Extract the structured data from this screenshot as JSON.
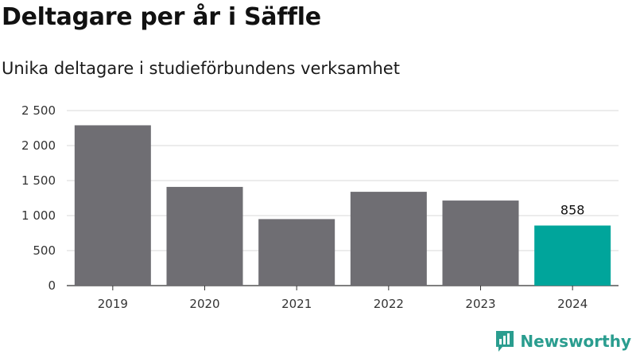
{
  "chart_data": {
    "type": "bar",
    "title": "Deltagare per år i Säffle",
    "subtitle": "Unika deltagare i studieförbundens verksamhet",
    "categories": [
      "2019",
      "2020",
      "2021",
      "2022",
      "2023",
      "2024"
    ],
    "values": [
      2290,
      1410,
      950,
      1340,
      1215,
      858
    ],
    "data_labels": [
      "",
      "",
      "",
      "",
      "",
      "858"
    ],
    "ylim": [
      0,
      2500
    ],
    "yticks": [
      0,
      500,
      1000,
      1500,
      2000,
      2500
    ],
    "ytick_labels": [
      "0",
      "500",
      "1 000",
      "1 500",
      "2 000",
      "2 500"
    ],
    "grid": true,
    "colors": {
      "default": "#6f6e73",
      "highlight": "#00a59b",
      "highlight_index": 5
    }
  },
  "brand": {
    "name": "Newsworthy",
    "logo_icon": "newsworthy-logo-icon",
    "color": "#2a9d8f"
  }
}
